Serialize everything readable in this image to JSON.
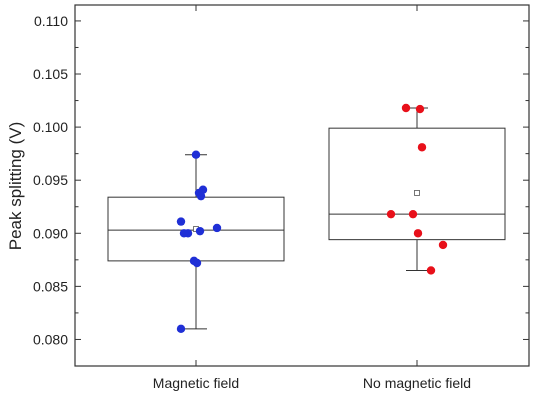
{
  "chart_data": {
    "type": "box",
    "title": "",
    "xlabel": "",
    "ylabel": "Peak splitting (V)",
    "ylim": [
      0.0775,
      0.1115
    ],
    "y_ticks": [
      0.08,
      0.085,
      0.09,
      0.095,
      0.1,
      0.105,
      0.11
    ],
    "y_tick_labels": [
      "0.080",
      "0.085",
      "0.090",
      "0.095",
      "0.100",
      "0.105",
      "0.110"
    ],
    "grid": false,
    "legend": "none",
    "categories": [
      "Magnetic field",
      "No magnetic field"
    ],
    "series": [
      {
        "color": "#1f2fd6",
        "points": [
          0.0974,
          0.0941,
          0.0938,
          0.0935,
          0.0911,
          0.0905,
          0.0902,
          0.09,
          0.09,
          0.0874,
          0.0872,
          0.081
        ],
        "box": {
          "whisker_low": 0.081,
          "q1": 0.0874,
          "median": 0.0903,
          "q3": 0.0934,
          "whisker_high": 0.0974,
          "mean": 0.0904
        }
      },
      {
        "color": "#e8101a",
        "points": [
          0.1018,
          0.1017,
          0.0981,
          0.0918,
          0.0918,
          0.09,
          0.0889,
          0.0865
        ],
        "box": {
          "whisker_low": 0.0865,
          "q1": 0.0894,
          "median": 0.0918,
          "q3": 0.0999,
          "whisker_high": 0.1018,
          "mean": 0.0938
        }
      }
    ]
  }
}
